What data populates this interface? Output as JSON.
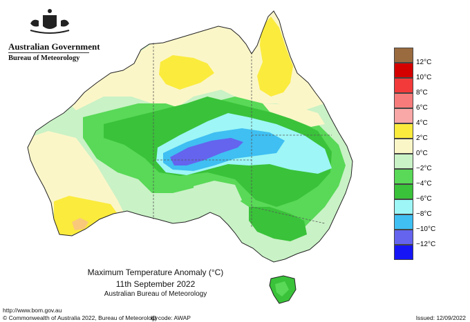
{
  "header": {
    "government": "Australian Government",
    "bureau": "Bureau of Meteorology"
  },
  "legend": {
    "labels": [
      "12°C",
      "10°C",
      "8°C",
      "6°C",
      "4°C",
      "2°C",
      "0°C",
      "−2°C",
      "−4°C",
      "−6°C",
      "−8°C",
      "−10°C",
      "−12°C"
    ],
    "colors": [
      "#9a6b3f",
      "#d40000",
      "#f23a3a",
      "#f77b7b",
      "#f9a7a7",
      "#fbeb3d",
      "#fbf6c8",
      "#c9f2c6",
      "#59d957",
      "#3ac23a",
      "#9ef6f6",
      "#3fbff2",
      "#6464ee",
      "#1515f5"
    ]
  },
  "caption": {
    "title": "Maximum Temperature Anomaly (°C)",
    "date": "11th September 2022",
    "org": "Australian Bureau of Meteorology"
  },
  "footer": {
    "url": "http://www.bom.gov.au",
    "copyright": "© Commonwealth of Australia 2022, Bureau of Meteorology",
    "id_code": "ID code: AWAP",
    "issued": "Issued: 12/09/2022"
  }
}
